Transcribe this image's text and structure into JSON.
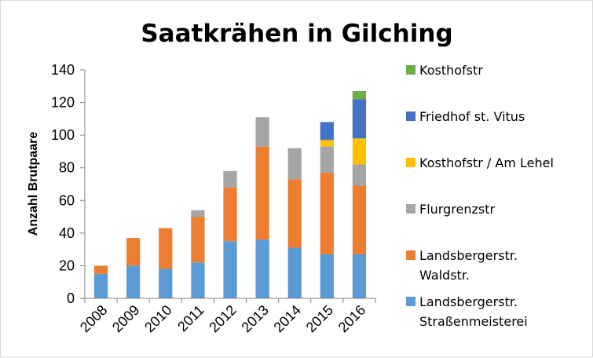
{
  "chart_data": {
    "type": "bar",
    "stacked": true,
    "title": "Saatkrähen in Gilching",
    "xlabel": "",
    "ylabel": "Anzahl Brutpaare",
    "ylim": [
      0,
      140
    ],
    "yticks": [
      0,
      20,
      40,
      60,
      80,
      100,
      120,
      140
    ],
    "grid": false,
    "legend_position": "right",
    "categories": [
      "2008",
      "2009",
      "2010",
      "2011",
      "2012",
      "2013",
      "2014",
      "2015",
      "2016"
    ],
    "series": [
      {
        "name": "Landsbergerstr. Straßenmeisterei",
        "color": "#5b9bd5",
        "values": [
          15,
          20,
          18,
          22,
          35,
          36,
          31,
          27,
          27
        ]
      },
      {
        "name": "Landsbergerstr. Waldstr.",
        "color": "#ed7d31",
        "values": [
          5,
          17,
          25,
          28,
          33,
          57,
          42,
          50,
          42
        ]
      },
      {
        "name": "Flurgrenzstr",
        "color": "#a5a5a5",
        "values": [
          0,
          0,
          0,
          4,
          10,
          18,
          19,
          16,
          13
        ]
      },
      {
        "name": "Kosthofstr / Am Lehel",
        "color": "#ffc000",
        "values": [
          0,
          0,
          0,
          0,
          0,
          0,
          0,
          4,
          16
        ]
      },
      {
        "name": "Friedhof st. Vitus",
        "color": "#4472c4",
        "values": [
          0,
          0,
          0,
          0,
          0,
          0,
          0,
          11,
          24
        ]
      },
      {
        "name": "Kosthofstr",
        "color": "#70ad47",
        "values": [
          0,
          0,
          0,
          0,
          0,
          0,
          0,
          0,
          5
        ]
      }
    ]
  }
}
